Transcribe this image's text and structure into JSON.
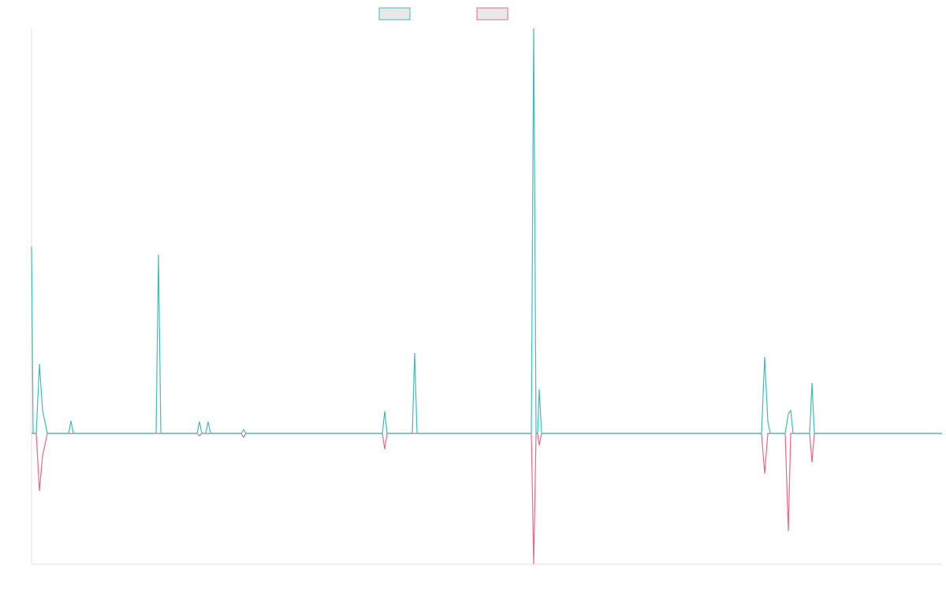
{
  "chart_data": {
    "type": "line",
    "x": [
      0,
      2,
      6,
      10,
      14,
      18,
      20,
      47,
      50,
      53,
      158,
      161,
      164,
      210,
      213,
      216,
      221,
      224,
      227,
      266,
      269,
      272,
      445,
      448,
      451,
      483,
      486,
      489,
      634,
      637,
      640,
      642,
      644,
      647,
      926,
      930,
      934,
      937,
      956,
      960,
      963,
      966,
      987,
      990,
      993,
      1155
    ],
    "series": [
      {
        "color": "#3dbdbd",
        "values": [
          237,
          0,
          0,
          88,
          29,
          10,
          0,
          0,
          16,
          0,
          0,
          227,
          0,
          0,
          15,
          0,
          0,
          15,
          0,
          0,
          5,
          0,
          0,
          28,
          0,
          0,
          102,
          0,
          0,
          514,
          0,
          0,
          56,
          0,
          0,
          97,
          15,
          0,
          0,
          25,
          29,
          0,
          0,
          64,
          0,
          0
        ]
      },
      {
        "color": "#f06488",
        "values": [
          0,
          0,
          0,
          -73,
          -28,
          -10,
          0,
          0,
          0,
          0,
          0,
          0,
          0,
          0,
          -3,
          0,
          0,
          0,
          0,
          0,
          -5,
          0,
          0,
          -20,
          0,
          0,
          0,
          0,
          0,
          -166,
          0,
          0,
          -15,
          0,
          0,
          -51,
          0,
          0,
          0,
          -124,
          0,
          0,
          0,
          -37,
          0,
          0
        ]
      }
    ],
    "xlim": [
      0,
      1155
    ],
    "ylim": [
      -166,
      514
    ]
  }
}
